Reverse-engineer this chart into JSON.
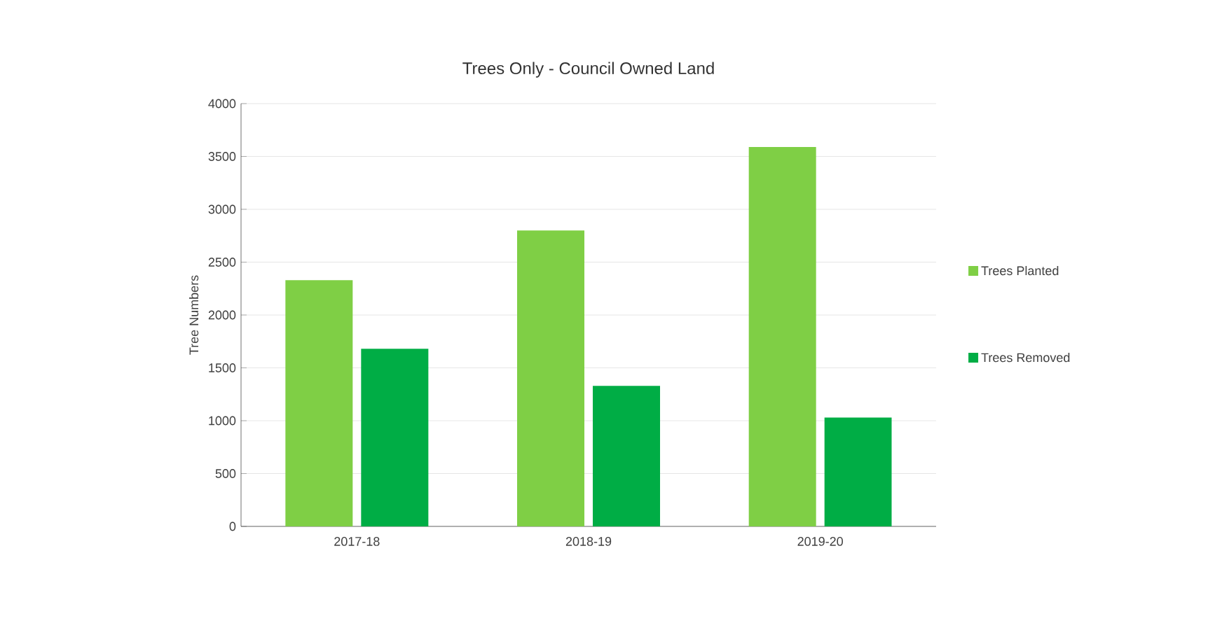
{
  "chart_data": {
    "type": "bar",
    "title": "Trees Only  -  Council Owned Land",
    "ylabel": "Tree Numbers",
    "categories": [
      "2017-18",
      "2018-19",
      "2019-20"
    ],
    "series": [
      {
        "name": "Trees Planted",
        "color": "#7fcf45",
        "values": [
          2330,
          2800,
          3590
        ]
      },
      {
        "name": "Trees Removed",
        "color": "#00ad45",
        "values": [
          1680,
          1330,
          1030
        ]
      }
    ],
    "ylim": [
      0,
      4000
    ],
    "yticks": [
      0,
      500,
      1000,
      1500,
      2000,
      2500,
      3000,
      3500,
      4000
    ],
    "grid": "y",
    "legend": "right"
  }
}
